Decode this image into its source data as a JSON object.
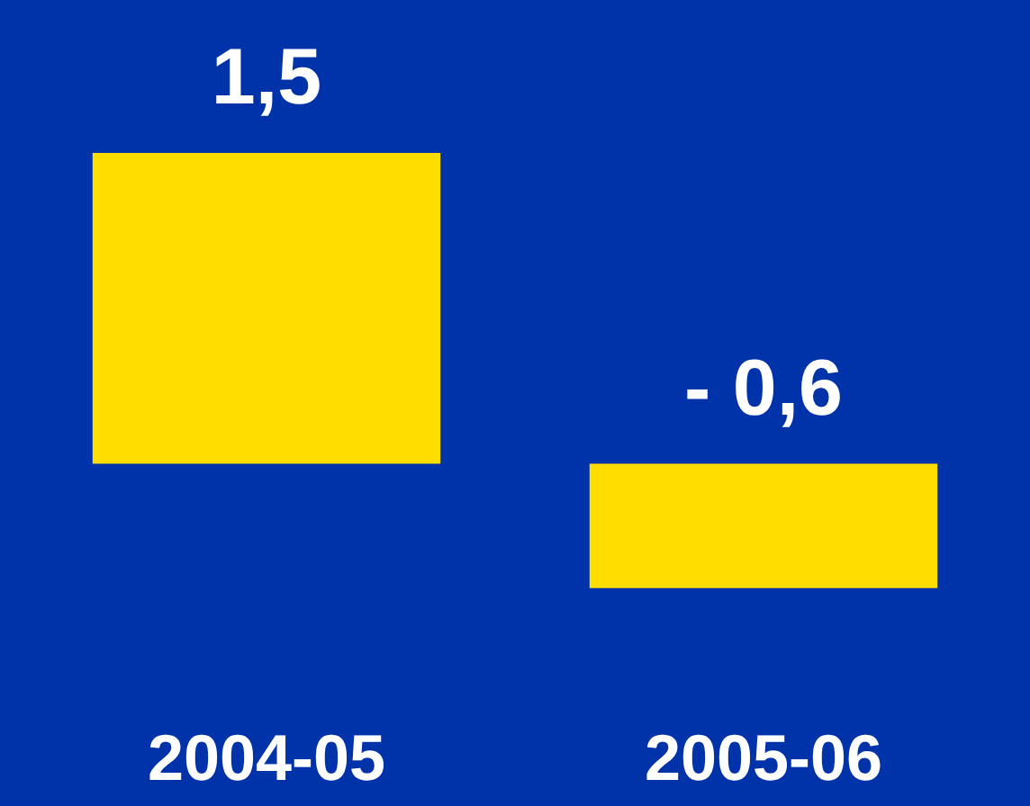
{
  "chart_data": {
    "type": "bar",
    "categories": [
      "2004-05",
      "2005-06"
    ],
    "values": [
      1.5,
      -0.6
    ],
    "color": "#ffdd00",
    "value_labels": [
      "1,5",
      "- 0,6"
    ]
  }
}
